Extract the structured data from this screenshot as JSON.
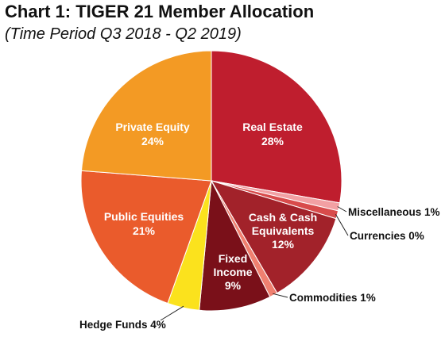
{
  "chart_data": {
    "type": "pie",
    "title": "Chart 1: TIGER 21 Member Allocation",
    "subtitle": "(Time Period Q3 2018 - Q2 2019)",
    "slices": [
      {
        "label": "Real Estate",
        "value": 28,
        "display": "28%",
        "color": "#bf1e2e"
      },
      {
        "label": "Miscellaneous",
        "value": 1,
        "display": "1%",
        "color": "#f2a0a3"
      },
      {
        "label": "Currencies",
        "value": 0,
        "display": "0%",
        "color": "#d84b4b"
      },
      {
        "label": "Cash & Cash Equivalents",
        "value": 12,
        "display": "12%",
        "color": "#a2222a"
      },
      {
        "label": "Commodities",
        "value": 1,
        "display": "1%",
        "color": "#f08070"
      },
      {
        "label": "Fixed Income",
        "value": 9,
        "display": "9%",
        "color": "#7a1019"
      },
      {
        "label": "Hedge Funds",
        "value": 4,
        "display": "4%",
        "color": "#fbe21d"
      },
      {
        "label": "Public Equities",
        "value": 21,
        "display": "21%",
        "color": "#ea5b2c"
      },
      {
        "label": "Private Equity",
        "value": 24,
        "display": "24%",
        "color": "#f39a24"
      }
    ]
  }
}
